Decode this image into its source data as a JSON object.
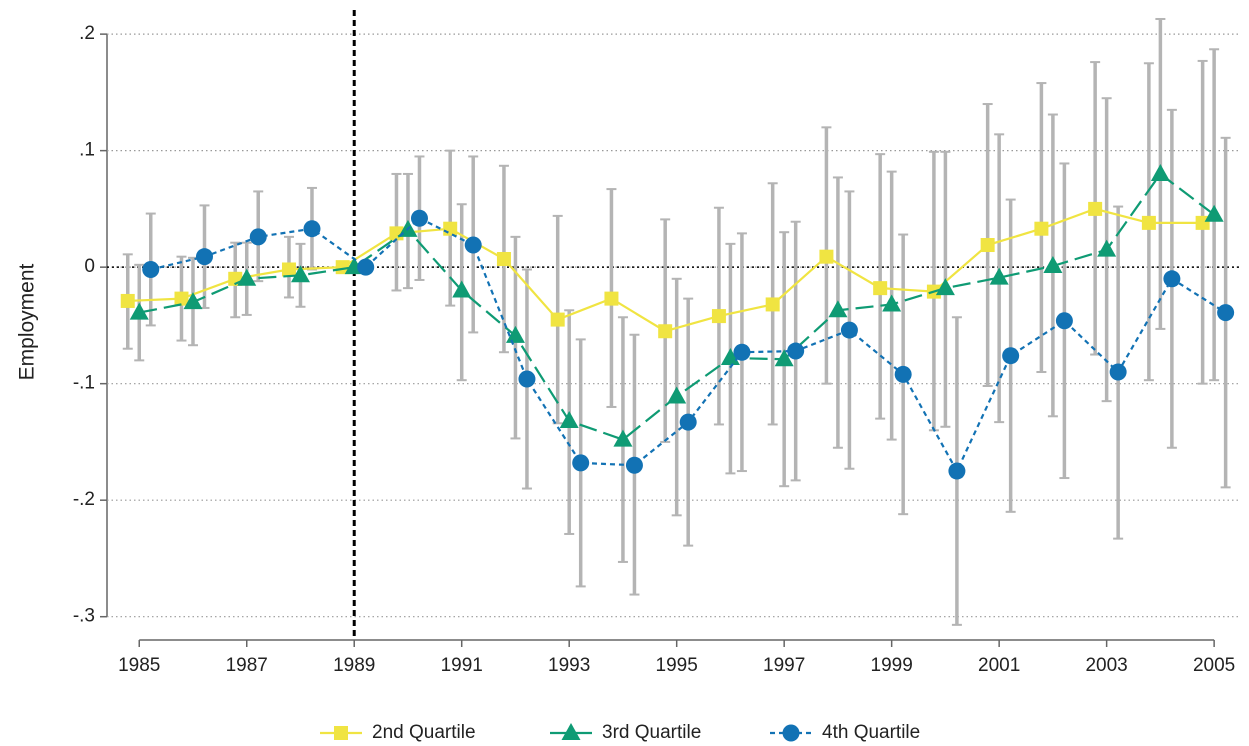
{
  "chart_data": {
    "type": "line",
    "y_label": "Employment",
    "x": [
      1985,
      1986,
      1987,
      1988,
      1989,
      1990,
      1991,
      1992,
      1993,
      1994,
      1995,
      1996,
      1997,
      1998,
      1999,
      2000,
      2001,
      2002,
      2003,
      2004,
      2005
    ],
    "xlim": [
      1984.4,
      2005.5
    ],
    "xticks": [
      1985,
      1987,
      1989,
      1991,
      1993,
      1995,
      1997,
      1999,
      2001,
      2003,
      2005
    ],
    "ylim": [
      -0.32,
      0.225
    ],
    "yticks": [
      {
        "value": 0.2,
        "label": ".2"
      },
      {
        "value": 0.1,
        "label": ".1"
      },
      0,
      {
        "value": -0.1,
        "label": "-.1"
      },
      {
        "value": -0.2,
        "label": "-.2"
      },
      {
        "value": -0.3,
        "label": "-.3"
      }
    ],
    "grid": true,
    "vline": 1989,
    "hline": 0,
    "error_color": "#b4b4b4",
    "legend": "bottom",
    "series": [
      {
        "name": "2nd Quartile",
        "color": "#f0e442",
        "marker": "square",
        "dash": "solid",
        "values": [
          -0.029,
          -0.027,
          -0.01,
          -0.002,
          0,
          0.029,
          0.033,
          0.007,
          -0.045,
          -0.027,
          -0.055,
          -0.042,
          -0.032,
          0.009,
          -0.018,
          -0.021,
          0.019,
          0.033,
          0.05,
          0.038,
          0.038
        ],
        "upper": [
          0.011,
          0.009,
          0.021,
          0.026,
          null,
          0.08,
          0.1,
          0.087,
          0.044,
          0.067,
          0.041,
          0.051,
          0.072,
          0.12,
          0.097,
          0.099,
          0.14,
          0.158,
          0.176,
          0.175,
          0.177
        ],
        "lower": [
          -0.07,
          -0.063,
          -0.043,
          -0.026,
          null,
          -0.02,
          -0.033,
          -0.073,
          -0.134,
          -0.12,
          -0.15,
          -0.135,
          -0.135,
          -0.1,
          -0.13,
          -0.14,
          -0.102,
          -0.09,
          -0.075,
          -0.097,
          -0.1
        ]
      },
      {
        "name": "3rd Quartile",
        "color": "#0f9b74",
        "marker": "triangle",
        "dash": "long",
        "values": [
          -0.039,
          -0.03,
          -0.01,
          -0.007,
          0,
          0.032,
          -0.02,
          -0.059,
          -0.132,
          -0.148,
          -0.111,
          -0.078,
          -0.079,
          -0.037,
          -0.032,
          -0.018,
          -0.009,
          0.001,
          0.015,
          0.08,
          0.045
        ],
        "upper": [
          0.002,
          0.008,
          0.021,
          0.02,
          null,
          0.08,
          0.054,
          0.026,
          -0.037,
          -0.043,
          -0.01,
          0.02,
          0.03,
          0.077,
          0.082,
          0.099,
          0.114,
          0.131,
          0.145,
          0.213,
          0.187
        ],
        "lower": [
          -0.08,
          -0.067,
          -0.041,
          -0.034,
          null,
          -0.018,
          -0.097,
          -0.147,
          -0.229,
          -0.253,
          -0.213,
          -0.177,
          -0.188,
          -0.155,
          -0.148,
          -0.137,
          -0.133,
          -0.128,
          -0.115,
          -0.053,
          -0.097
        ]
      },
      {
        "name": "4th Quartile",
        "color": "#1272b4",
        "marker": "circle",
        "dash": "short",
        "values": [
          -0.002,
          0.009,
          0.026,
          0.033,
          0,
          0.042,
          0.019,
          -0.096,
          -0.168,
          -0.17,
          -0.133,
          -0.073,
          -0.072,
          -0.054,
          -0.092,
          -0.175,
          -0.076,
          -0.046,
          -0.09,
          -0.01,
          -0.039
        ],
        "upper": [
          0.046,
          0.053,
          0.065,
          0.068,
          null,
          0.095,
          0.095,
          -0.002,
          -0.062,
          -0.058,
          -0.027,
          0.029,
          0.039,
          0.065,
          0.028,
          -0.043,
          0.058,
          0.089,
          0.052,
          0.135,
          0.111
        ],
        "lower": [
          -0.05,
          -0.035,
          -0.012,
          -0.002,
          null,
          -0.011,
          -0.056,
          -0.19,
          -0.274,
          -0.281,
          -0.239,
          -0.175,
          -0.183,
          -0.173,
          -0.212,
          -0.307,
          -0.21,
          -0.181,
          -0.233,
          -0.155,
          -0.189
        ]
      }
    ]
  }
}
